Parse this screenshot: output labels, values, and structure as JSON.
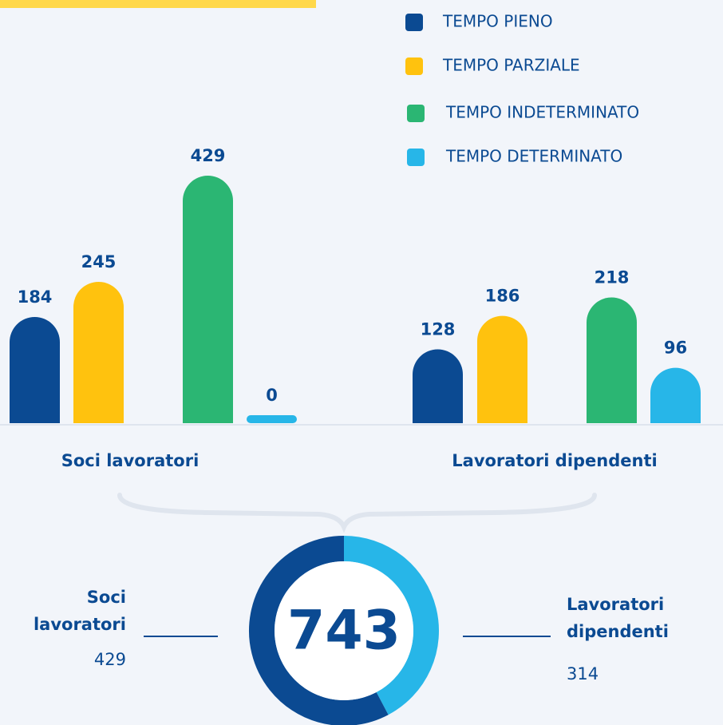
{
  "chart_data": [
    {
      "type": "bar",
      "categories": [
        "Soci lavoratori",
        "Lavoratori dipendenti"
      ],
      "series": [
        {
          "name": "TEMPO PIENO",
          "color": "#0b4a92",
          "values": [
            184,
            128
          ]
        },
        {
          "name": "TEMPO PARZIALE",
          "color": "#ffc20e",
          "values": [
            245,
            186
          ]
        },
        {
          "name": "TEMPO INDETERMINATO",
          "color": "#2bb673",
          "values": [
            429,
            218
          ]
        },
        {
          "name": "TEMPO DETERMINATO",
          "color": "#27b6e8",
          "values": [
            0,
            96
          ]
        }
      ]
    },
    {
      "type": "donut",
      "total": 743,
      "categories": [
        "Soci lavoratori",
        "Lavoratori dipendenti"
      ],
      "values": [
        429,
        314
      ],
      "colors": [
        "#0b4a92",
        "#27b6e8"
      ]
    }
  ]
}
